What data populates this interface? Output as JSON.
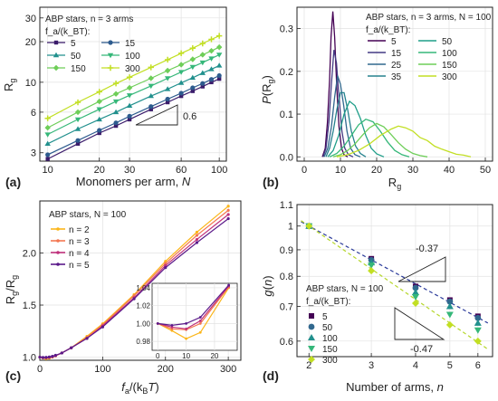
{
  "chart_data": [
    {
      "id": "a",
      "panel_label": "(a)",
      "type": "line",
      "xlabel": "Monomers per arm, N",
      "ylabel": "R_g",
      "xscale": "log",
      "yscale": "log",
      "xlim": [
        9,
        110
      ],
      "ylim": [
        2.6,
        36
      ],
      "xticks": [
        10,
        20,
        30,
        60,
        100
      ],
      "yticks": [
        3,
        6,
        10,
        20,
        30
      ],
      "grid": true,
      "legend_title_1": "ABP stars, n = 3 arms",
      "legend_title_2": "f_a/(k_BT):",
      "legend_position": "top-left",
      "slope_label": "0.6",
      "x": [
        10,
        15,
        20,
        25,
        30,
        40,
        50,
        60,
        70,
        80,
        90,
        100
      ],
      "series": [
        {
          "name": "5",
          "color": "#3b1c6b",
          "marker": "square",
          "values": [
            2.7,
            3.5,
            4.2,
            4.75,
            5.3,
            6.3,
            7.1,
            7.9,
            8.6,
            9.3,
            10.0,
            10.6
          ]
        },
        {
          "name": "15",
          "color": "#2d5b8e",
          "marker": "circle",
          "values": [
            2.9,
            3.7,
            4.4,
            5.0,
            5.6,
            6.6,
            7.5,
            8.3,
            9.1,
            9.8,
            10.5,
            11.2
          ]
        },
        {
          "name": "50",
          "color": "#21908d",
          "marker": "triangle",
          "values": [
            3.5,
            4.5,
            5.3,
            6.0,
            6.7,
            7.9,
            8.9,
            9.9,
            10.8,
            11.7,
            12.5,
            13.3
          ]
        },
        {
          "name": "100",
          "color": "#35b779",
          "marker": "tri-down",
          "values": [
            4.1,
            5.3,
            6.3,
            7.2,
            8.0,
            9.4,
            10.7,
            11.9,
            13.0,
            14.0,
            15.0,
            16.0
          ]
        },
        {
          "name": "150",
          "color": "#6ece58",
          "marker": "diamond",
          "values": [
            4.6,
            6.0,
            7.2,
            8.2,
            9.1,
            10.7,
            12.2,
            13.5,
            14.8,
            16.0,
            17.1,
            18.2
          ]
        },
        {
          "name": "300",
          "color": "#c2df23",
          "marker": "plus",
          "values": [
            5.4,
            7.1,
            8.5,
            9.8,
            10.9,
            12.9,
            14.7,
            16.4,
            17.9,
            19.4,
            20.8,
            22.1
          ]
        }
      ]
    },
    {
      "id": "b",
      "panel_label": "(b)",
      "type": "line",
      "xlabel": "R_g",
      "ylabel": "P(R_g)",
      "xlim": [
        -2,
        52
      ],
      "ylim": [
        -0.01,
        0.35
      ],
      "xticks": [
        0,
        10,
        20,
        30,
        40,
        50
      ],
      "yticks": [
        0.0,
        0.1,
        0.2,
        0.3
      ],
      "ytick_labels": [
        "0.0",
        "0.1",
        "0.2",
        "0.3"
      ],
      "grid": true,
      "legend_title_1": "ABP stars, n = 3 arms, N = 100",
      "legend_title_2": "f_a/(k_BT):",
      "legend_position": "top-right",
      "series": [
        {
          "name": "5",
          "color": "#440154",
          "x": [
            5,
            5.8,
            6.4,
            7.0,
            7.4,
            7.9,
            8.4,
            9.0,
            9.6,
            10.3,
            11,
            12
          ],
          "values": [
            0,
            0.02,
            0.08,
            0.18,
            0.28,
            0.34,
            0.28,
            0.16,
            0.07,
            0.02,
            0.005,
            0
          ]
        },
        {
          "name": "15",
          "color": "#443a83",
          "x": [
            5.2,
            6,
            6.8,
            7.5,
            8.2,
            8.9,
            9.6,
            10.4,
            11.2,
            12.2,
            13.5
          ],
          "values": [
            0,
            0.02,
            0.08,
            0.17,
            0.25,
            0.22,
            0.14,
            0.06,
            0.02,
            0.005,
            0
          ]
        },
        {
          "name": "25",
          "color": "#31688e",
          "x": [
            5.5,
            6.5,
            7.5,
            8.4,
            9.2,
            10.0,
            10.9,
            11.8,
            12.8,
            14,
            15.5
          ],
          "values": [
            0,
            0.02,
            0.07,
            0.14,
            0.19,
            0.17,
            0.12,
            0.06,
            0.02,
            0.005,
            0
          ]
        },
        {
          "name": "35",
          "color": "#26828e",
          "x": [
            6,
            7,
            8,
            9,
            10,
            11,
            12,
            13,
            14.2,
            15.5,
            17
          ],
          "values": [
            0,
            0.02,
            0.06,
            0.11,
            0.15,
            0.15,
            0.11,
            0.06,
            0.025,
            0.008,
            0
          ]
        },
        {
          "name": "50",
          "color": "#1f9e89",
          "x": [
            6.5,
            8,
            9.5,
            11,
            12.5,
            14,
            15.5,
            17,
            18.5,
            20,
            22
          ],
          "values": [
            0,
            0.015,
            0.05,
            0.1,
            0.13,
            0.12,
            0.09,
            0.05,
            0.02,
            0.007,
            0
          ]
        },
        {
          "name": "100",
          "color": "#35b779",
          "x": [
            7,
            9,
            11,
            13,
            15,
            17,
            19,
            21,
            23,
            25,
            27,
            29
          ],
          "values": [
            0,
            0.008,
            0.025,
            0.05,
            0.075,
            0.088,
            0.082,
            0.06,
            0.035,
            0.015,
            0.005,
            0
          ]
        },
        {
          "name": "150",
          "color": "#6ece58",
          "x": [
            8,
            10,
            12,
            14,
            16,
            18,
            20,
            22,
            24,
            26,
            28,
            30,
            32,
            34
          ],
          "values": [
            0,
            0.005,
            0.015,
            0.03,
            0.05,
            0.068,
            0.078,
            0.07,
            0.052,
            0.033,
            0.018,
            0.008,
            0.003,
            0
          ]
        },
        {
          "name": "300",
          "color": "#c2df23",
          "x": [
            9,
            12,
            15,
            18,
            21,
            24,
            26,
            28,
            30,
            32,
            34,
            36,
            38,
            40,
            42,
            44,
            46
          ],
          "values": [
            0,
            0.005,
            0.015,
            0.03,
            0.05,
            0.065,
            0.072,
            0.068,
            0.06,
            0.045,
            0.038,
            0.025,
            0.018,
            0.012,
            0.006,
            0.004,
            0
          ]
        }
      ]
    },
    {
      "id": "c",
      "panel_label": "(c)",
      "type": "line",
      "xlabel": "f_a/(k_BT)",
      "ylabel": "R_g/R_g^(0)",
      "xlim": [
        0,
        320
      ],
      "ylim": [
        0.97,
        2.5
      ],
      "xticks": [
        0,
        100,
        200,
        300
      ],
      "yticks": [
        1.0,
        1.5,
        2.0
      ],
      "ytick_labels": [
        "1.0",
        "1.5",
        "2.0"
      ],
      "grid": true,
      "legend_title": "ABP stars, N = 100",
      "legend_position": "top-left",
      "series": [
        {
          "name": "n = 2",
          "color": "#fbb61a",
          "x": [
            0,
            5,
            10,
            15,
            20,
            25,
            35,
            50,
            75,
            100,
            150,
            200,
            250,
            300
          ],
          "values": [
            1.0,
            0.992,
            0.985,
            0.99,
            1.0,
            1.012,
            1.04,
            1.09,
            1.2,
            1.32,
            1.6,
            1.92,
            2.2,
            2.45
          ]
        },
        {
          "name": "n = 3",
          "color": "#f37651",
          "x": [
            0,
            5,
            10,
            15,
            20,
            25,
            35,
            50,
            75,
            100,
            150,
            200,
            250,
            300
          ],
          "values": [
            1.0,
            0.994,
            0.993,
            0.996,
            1.003,
            1.013,
            1.04,
            1.09,
            1.19,
            1.31,
            1.59,
            1.9,
            2.17,
            2.41
          ]
        },
        {
          "name": "n = 4",
          "color": "#c0317c",
          "x": [
            0,
            5,
            10,
            15,
            20,
            25,
            35,
            50,
            75,
            100,
            150,
            200,
            250,
            300
          ],
          "values": [
            1.0,
            0.995,
            0.994,
            0.998,
            1.004,
            1.014,
            1.04,
            1.09,
            1.18,
            1.3,
            1.57,
            1.88,
            2.13,
            2.37
          ]
        },
        {
          "name": "n = 5",
          "color": "#5b1a8a",
          "x": [
            0,
            5,
            10,
            15,
            20,
            25,
            35,
            50,
            75,
            100,
            150,
            200,
            250,
            300
          ],
          "values": [
            1.0,
            0.997,
            0.998,
            1.002,
            1.008,
            1.018,
            1.04,
            1.09,
            1.18,
            1.29,
            1.56,
            1.86,
            2.1,
            2.33
          ]
        }
      ],
      "inset": {
        "xlim": [
          -2,
          28
        ],
        "ylim": [
          0.97,
          1.045
        ],
        "xticks": [
          0,
          10,
          20
        ],
        "yticks": [
          0.98,
          1.0,
          1.02,
          1.04
        ],
        "ytick_labels": [
          "0.98",
          "1.00",
          "1.02",
          "1.04"
        ],
        "x": [
          0,
          5,
          10,
          15,
          25
        ],
        "series": [
          {
            "name": "n = 2",
            "color": "#fbb61a",
            "values": [
              1.0,
              0.992,
              0.983,
              0.99,
              1.04
            ]
          },
          {
            "name": "n = 3",
            "color": "#f37651",
            "values": [
              1.0,
              0.994,
              0.993,
              1.0,
              1.041
            ]
          },
          {
            "name": "n = 4",
            "color": "#c0317c",
            "values": [
              1.0,
              0.996,
              0.994,
              1.003,
              1.042
            ]
          },
          {
            "name": "n = 5",
            "color": "#5b1a8a",
            "values": [
              1.0,
              0.998,
              1.0,
              1.007,
              1.043
            ]
          }
        ]
      }
    },
    {
      "id": "d",
      "panel_label": "(d)",
      "type": "scatter",
      "xlabel": "Number of arms, n",
      "ylabel": "g(n)",
      "xscale": "log",
      "yscale": "log",
      "xlim": [
        1.85,
        6.6
      ],
      "ylim": [
        0.56,
        1.1
      ],
      "xticks": [
        2,
        3,
        4,
        5,
        6
      ],
      "yticks": [
        0.6,
        0.7,
        0.8,
        0.9,
        1.0,
        1.1
      ],
      "ytick_labels": [
        "0.6",
        "0.7",
        "0.8",
        "0.9",
        "1",
        "1.1"
      ],
      "grid": true,
      "legend_title_1": "ABP stars, N = 100",
      "legend_title_2": "f_a/(k_BT):",
      "legend_position": "bottom-left",
      "x": [
        2,
        3,
        4,
        5,
        6
      ],
      "series": [
        {
          "name": "5",
          "color": "#440154",
          "marker": "square",
          "values": [
            1.0,
            0.865,
            0.765,
            0.72,
            0.67
          ]
        },
        {
          "name": "50",
          "color": "#31688e",
          "marker": "circle",
          "values": [
            1.0,
            0.86,
            0.76,
            0.715,
            0.665
          ]
        },
        {
          "name": "100",
          "color": "#21908d",
          "marker": "triangle",
          "values": [
            1.0,
            0.85,
            0.745,
            0.7,
            0.65
          ]
        },
        {
          "name": "150",
          "color": "#35b779",
          "marker": "tri-down",
          "values": [
            1.0,
            0.84,
            0.73,
            0.675,
            0.63
          ]
        },
        {
          "name": "300",
          "color": "#c2df23",
          "marker": "diamond",
          "values": [
            1.0,
            0.82,
            0.71,
            0.645,
            0.6
          ]
        }
      ],
      "fits": [
        {
          "slope": -0.37,
          "color": "#2a3a9a"
        },
        {
          "slope": -0.47,
          "color": "#b5d62a"
        }
      ],
      "slope_labels": [
        "-0.37",
        "-0.47"
      ]
    }
  ]
}
